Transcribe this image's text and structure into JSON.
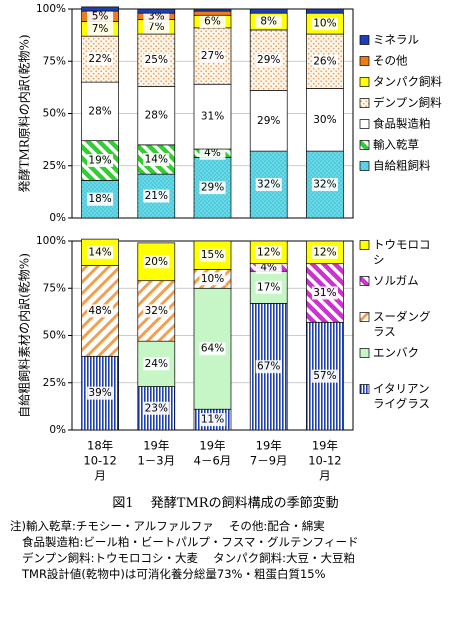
{
  "figure_caption": "図1　 発酵TMRの飼料構成の季節変動",
  "notes": [
    "注)輸入乾草:チモシー・アルファルファ　 その他:配合・綿実",
    "食品製造粕:ビール粕・ビートパルプ・フスマ・グルテンフィード",
    "デンプン飼料:トウモロコシ・大麦　 タンパク飼料:大豆・大豆粕",
    "TMR設計値(乾物中)は可消化養分総量73%・粗蛋白質15%"
  ],
  "colors": {
    "mineral": "#1e3fb4",
    "other": "#f07b1a",
    "protein": "#ffff00",
    "starch": "#f0a050",
    "byproduct": "#ffffff",
    "imported_hay": "#33cc33",
    "home_grown": "#66d9e8",
    "corn": "#ffff00",
    "sorghum": "#cc33cc",
    "sudangrass": "#f0a050",
    "oat": "#c6f5c6",
    "ryegrass": "#1e3fb4"
  },
  "x_categories": [
    [
      "18年",
      "10-12",
      "月"
    ],
    [
      "19年",
      "1－3月"
    ],
    [
      "19年",
      "4－6月"
    ],
    [
      "19年",
      "7－9月"
    ],
    [
      "19年",
      "10-12",
      "月"
    ]
  ],
  "chart_data": [
    {
      "type": "bar",
      "stacked": true,
      "ylabel": "発酵TMR原料の内訳(乾物%)",
      "ylim": [
        0,
        100
      ],
      "yticks": [
        "0%",
        "25%",
        "50%",
        "75%",
        "100%"
      ],
      "categories": [
        "18年10-12月",
        "19年1－3月",
        "19年4－6月",
        "19年7－9月",
        "19年10-12月"
      ],
      "series": [
        {
          "name": "自給粗飼料",
          "key": "home_grown",
          "values": [
            18,
            21,
            29,
            32,
            32
          ],
          "labels": [
            "18%",
            "21%",
            "29%",
            "32%",
            "32%"
          ]
        },
        {
          "name": "輸入乾草",
          "key": "imported_hay",
          "values": [
            19,
            14,
            4,
            0,
            0
          ],
          "labels": [
            "19%",
            "14%",
            "4%",
            "",
            ""
          ]
        },
        {
          "name": "食品製造粕",
          "key": "byproduct",
          "values": [
            28,
            28,
            31,
            29,
            30
          ],
          "labels": [
            "28%",
            "28%",
            "31%",
            "29%",
            "30%"
          ]
        },
        {
          "name": "デンプン飼料",
          "key": "starch",
          "values": [
            22,
            25,
            27,
            29,
            26
          ],
          "labels": [
            "22%",
            "25%",
            "27%",
            "29%",
            "26%"
          ]
        },
        {
          "name": "タンパク飼料",
          "key": "protein",
          "values": [
            7,
            7,
            6,
            8,
            10
          ],
          "labels": [
            "7%",
            "7%",
            "6%",
            "8%",
            "10%"
          ]
        },
        {
          "name": "その他",
          "key": "other",
          "values": [
            5,
            3,
            2,
            0,
            0
          ],
          "labels": [
            "5%",
            "3%",
            "",
            "",
            ""
          ]
        },
        {
          "name": "ミネラル",
          "key": "mineral",
          "values": [
            2,
            2,
            1,
            2,
            2
          ],
          "labels": [
            "",
            "",
            "",
            "",
            ""
          ]
        }
      ],
      "legend_order": [
        "ミネラル",
        "その他",
        "タンパク飼料",
        "デンプン飼料",
        "食品製造粕",
        "輸入乾草",
        "自給粗飼料"
      ],
      "legend_placement": "right"
    },
    {
      "type": "bar",
      "stacked": true,
      "ylabel": "自給粗飼料素材の内訳(乾物%)",
      "ylim": [
        0,
        100
      ],
      "yticks": [
        "0%",
        "25%",
        "50%",
        "75%",
        "100%"
      ],
      "categories": [
        "18年10-12月",
        "19年1－3月",
        "19年4－6月",
        "19年7－9月",
        "19年10-12月"
      ],
      "series": [
        {
          "name": "イタリアンライグラス",
          "key": "ryegrass",
          "values": [
            39,
            23,
            11,
            67,
            57
          ],
          "labels": [
            "39%",
            "23%",
            "11%",
            "67%",
            "57%"
          ]
        },
        {
          "name": "エンバク",
          "key": "oat",
          "values": [
            0,
            24,
            64,
            17,
            0
          ],
          "labels": [
            "",
            "24%",
            "64%",
            "17%",
            ""
          ]
        },
        {
          "name": "スーダングラス",
          "key": "sudangrass",
          "values": [
            48,
            32,
            10,
            0,
            0
          ],
          "labels": [
            "48%",
            "32%",
            "10%",
            "",
            ""
          ]
        },
        {
          "name": "ソルガム",
          "key": "sorghum",
          "values": [
            0,
            0,
            0,
            4,
            31
          ],
          "labels": [
            "",
            "",
            "",
            "4%",
            "31%"
          ]
        },
        {
          "name": "トウモロコシ",
          "key": "corn",
          "values": [
            14,
            20,
            15,
            12,
            12
          ],
          "labels": [
            "14%",
            "20%",
            "15%",
            "12%",
            "12%"
          ]
        }
      ],
      "legend_order": [
        "トウモロコシ",
        "ソルガム",
        "スーダングラス",
        "エンバク",
        "イタリアンライグラス"
      ],
      "legend_placement": "right"
    }
  ]
}
